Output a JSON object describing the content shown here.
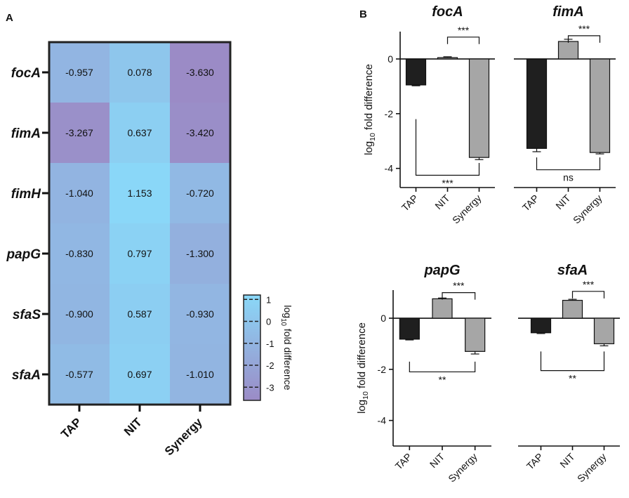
{
  "panel_a": {
    "letter": "A"
  },
  "panel_b": {
    "letter": "B"
  },
  "chart_data": [
    {
      "id": "heatmap",
      "type": "heatmap",
      "rows": [
        "focA",
        "fimA",
        "fimH",
        "papG",
        "sfaS",
        "sfaA"
      ],
      "columns": [
        "TAP",
        "NIT",
        "Synergy"
      ],
      "values": [
        [
          -0.957,
          0.078,
          -3.63
        ],
        [
          -3.267,
          0.637,
          -3.42
        ],
        [
          -1.04,
          1.153,
          -0.72
        ],
        [
          -0.83,
          0.797,
          -1.3
        ],
        [
          -0.9,
          0.587,
          -0.93
        ],
        [
          -0.577,
          0.697,
          -1.01
        ]
      ],
      "value_labels": [
        [
          "-0.957",
          "0.078",
          "-3.630"
        ],
        [
          "-3.267",
          "0.637",
          "-3.420"
        ],
        [
          "-1.040",
          "1.153",
          "-0.720"
        ],
        [
          "-0.830",
          "0.797",
          "-1.300"
        ],
        [
          "-0.900",
          "0.587",
          "-0.930"
        ],
        [
          "-0.577",
          "0.697",
          "-1.010"
        ]
      ],
      "colorbar": {
        "range": [
          -3.6,
          1.2
        ],
        "ticks": [
          1,
          0,
          -1,
          -2,
          -3
        ],
        "tick_labels": [
          "1",
          "0",
          "-1",
          "-2",
          "-3"
        ],
        "label_base": "log",
        "label_sub": "10",
        "label_rest": " fold difference",
        "high_color": "#8ad8f8",
        "low_color": "#9b8bc6"
      }
    },
    {
      "id": "focA",
      "type": "bar",
      "title": "focA",
      "categories": [
        "TAP",
        "NIT",
        "Synergy"
      ],
      "values": [
        -0.95,
        0.05,
        -3.6
      ],
      "errors": [
        0.03,
        0.03,
        0.08
      ],
      "colors": [
        "#1f1f1f",
        "#a6a6a6",
        "#a6a6a6"
      ],
      "ylim": [
        -4.7,
        1.0
      ],
      "yticks": [
        0,
        -2,
        -4
      ],
      "ytick_labels": [
        "0",
        "-2",
        "-4"
      ],
      "ylabel_base": "log",
      "ylabel_sub": "10",
      "ylabel_rest": " fold difference",
      "show_yaxis": true,
      "brackets": [
        {
          "from": 1,
          "to": 2,
          "label": "***",
          "pos": "top",
          "level": 0.8
        },
        {
          "from": 0,
          "to": 2,
          "label": "***",
          "pos": "bottom",
          "level": -4.25,
          "left_start": -2.2,
          "right_start": -3.8
        }
      ]
    },
    {
      "id": "fimA",
      "type": "bar",
      "title": "fimA",
      "categories": [
        "TAP",
        "NIT",
        "Synergy"
      ],
      "values": [
        -3.27,
        0.64,
        -3.42
      ],
      "errors": [
        0.12,
        0.08,
        0.05
      ],
      "colors": [
        "#1f1f1f",
        "#a6a6a6",
        "#a6a6a6"
      ],
      "ylim": [
        -4.7,
        1.0
      ],
      "yticks": [],
      "ytick_labels": [],
      "show_yaxis": false,
      "brackets": [
        {
          "from": 1,
          "to": 2,
          "label": "***",
          "pos": "top",
          "level": 0.85
        },
        {
          "from": 0,
          "to": 2,
          "label": "ns",
          "pos": "bottom",
          "level": -4.05,
          "left_start": -3.6,
          "right_start": -3.6
        }
      ]
    },
    {
      "id": "papG",
      "type": "bar",
      "title": "papG",
      "categories": [
        "TAP",
        "NIT",
        "Synergy"
      ],
      "values": [
        -0.82,
        0.76,
        -1.3
      ],
      "errors": [
        0.03,
        0.03,
        0.1
      ],
      "colors": [
        "#1f1f1f",
        "#a6a6a6",
        "#a6a6a6"
      ],
      "ylim": [
        -5.0,
        1.1
      ],
      "yticks": [
        0,
        -2,
        -4
      ],
      "ytick_labels": [
        "0",
        "-2",
        "-4"
      ],
      "ylabel_base": "log",
      "ylabel_sub": "10",
      "ylabel_rest": " fold difference",
      "show_yaxis": true,
      "brackets": [
        {
          "from": 1,
          "to": 2,
          "label": "***",
          "pos": "top",
          "level": 1.0
        },
        {
          "from": 0,
          "to": 2,
          "label": "**",
          "pos": "bottom",
          "level": -2.1,
          "left_start": -1.7,
          "right_start": -1.7
        }
      ]
    },
    {
      "id": "sfaA",
      "type": "bar",
      "title": "sfaA",
      "categories": [
        "TAP",
        "NIT",
        "Synergy"
      ],
      "values": [
        -0.57,
        0.7,
        -1.0
      ],
      "errors": [
        0.03,
        0.04,
        0.08
      ],
      "colors": [
        "#1f1f1f",
        "#a6a6a6",
        "#a6a6a6"
      ],
      "ylim": [
        -5.0,
        1.1
      ],
      "yticks": [],
      "ytick_labels": [],
      "show_yaxis": false,
      "brackets": [
        {
          "from": 1,
          "to": 2,
          "label": "***",
          "pos": "top",
          "level": 1.05
        },
        {
          "from": 0,
          "to": 2,
          "label": "**",
          "pos": "bottom",
          "level": -2.05,
          "left_start": -1.3,
          "right_start": -1.3
        }
      ]
    }
  ]
}
